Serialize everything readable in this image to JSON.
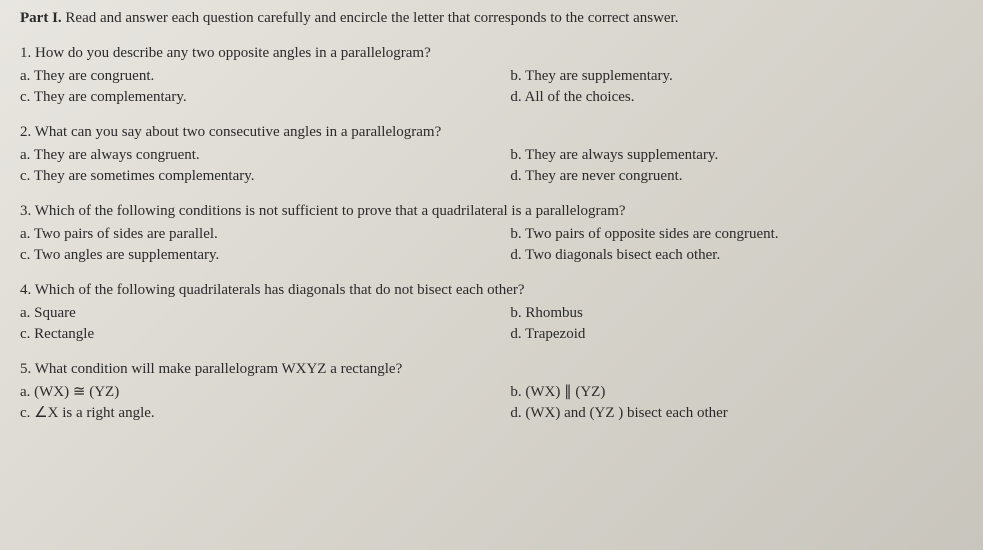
{
  "header": {
    "part_label": "Part I.",
    "instructions": " Read and answer each question carefully and encircle the letter that corresponds to the correct answer."
  },
  "q1": {
    "text": "1. How do you describe any two opposite angles in a parallelogram?",
    "a": "a. They are congruent.",
    "b": "b. They are supplementary.",
    "c": "c. They are complementary.",
    "d": "d. All of the choices."
  },
  "q2": {
    "text": "2. What can you say about two consecutive angles in a parallelogram?",
    "a": "a. They are always congruent.",
    "b": "b. They are always supplementary.",
    "c": "c. They are sometimes complementary.",
    "d": "d. They are never congruent."
  },
  "q3": {
    "text": "3. Which of the following conditions is not sufficient to prove that a quadrilateral is a parallelogram?",
    "a": "a. Two pairs of sides are parallel.",
    "b": "b. Two pairs of opposite sides are congruent.",
    "c": "c. Two angles are supplementary.",
    "d": "d. Two diagonals bisect each other."
  },
  "q4": {
    "text": "4. Which of the following quadrilaterals has diagonals that do not bisect each other?",
    "a": "a. Square",
    "b": "b. Rhombus",
    "c": "c. Rectangle",
    "d": "d. Trapezoid"
  },
  "q5": {
    "text": "5. What condition will make parallelogram WXYZ a rectangle?",
    "a": "a. (WX) ≅ (YZ)",
    "b": "b. (WX) ∥ (YZ)",
    "c": "c. ∠X is a right angle.",
    "d": "d. (WX) and (YZ ) bisect each other"
  }
}
